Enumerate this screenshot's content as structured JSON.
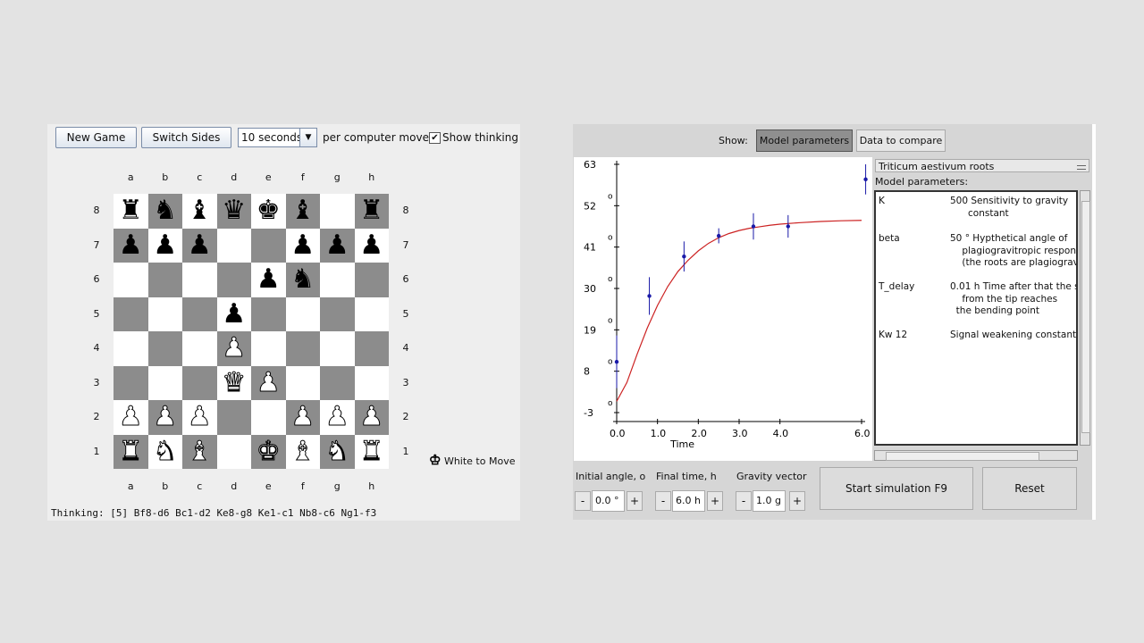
{
  "chess": {
    "new_game": "New Game",
    "switch_sides": "Switch Sides",
    "time_select": "10 seconds",
    "per_move": "per computer move",
    "show_thinking": "Show thinking",
    "show_thinking_checked": true,
    "check_mark": "✔",
    "files": [
      "a",
      "b",
      "c",
      "d",
      "e",
      "f",
      "g",
      "h"
    ],
    "ranks": [
      "8",
      "7",
      "6",
      "5",
      "4",
      "3",
      "2",
      "1"
    ],
    "board": [
      [
        "bR",
        "bN",
        "bB",
        "bQ",
        "bK",
        "bB",
        "",
        "bR"
      ],
      [
        "bP",
        "bP",
        "bP",
        "",
        "",
        "bP",
        "bP",
        "bP"
      ],
      [
        "",
        "",
        "",
        "",
        "bP",
        "bN",
        "",
        ""
      ],
      [
        "",
        "",
        "",
        "bP",
        "",
        "",
        "",
        ""
      ],
      [
        "",
        "",
        "",
        "wP",
        "",
        "",
        "",
        ""
      ],
      [
        "",
        "",
        "",
        "wQ",
        "wP",
        "",
        "",
        ""
      ],
      [
        "wP",
        "wP",
        "wP",
        "",
        "",
        "wP",
        "wP",
        "wP"
      ],
      [
        "wR",
        "wN",
        "wB",
        "",
        "wK",
        "wB",
        "wN",
        "wR"
      ]
    ],
    "status_icon": "white-king-icon",
    "status": "White to Move",
    "thinking_label": "Thinking:",
    "thinking_line": " [5] Bf8-d6 Bc1-d2 Ke8-g8 Ke1-c1 Nb8-c6 Ng1-f3"
  },
  "sim": {
    "show_label": "Show:",
    "tab_model": "Model parameters",
    "tab_data": "Data to compare",
    "species": "Triticum aestivum roots",
    "model_params_label": "Model parameters:",
    "params": [
      {
        "name": "K",
        "desc": "500 Sensitivity to gravity\n      constant"
      },
      {
        "name": "beta",
        "desc": "50 ° Hypthetical angle of\n    plagiogravitropic respons\n    (the roots are plagiogravi"
      },
      {
        "name": "T_delay",
        "desc": "0.01 h Time after that the s\n    from the tip reaches\n  the bending point"
      },
      {
        "name": "Kw 12",
        "desc": "Signal weakening constant"
      }
    ],
    "initial_angle_label": "Initial angle, o",
    "initial_angle": "0.0 °",
    "final_time_label": "Final time, h",
    "final_time": "6.0 h",
    "gravity_label": "Gravity vector",
    "gravity": "1.0 g",
    "minus": "-",
    "plus": "+",
    "start_btn": "Start simulation F9",
    "reset_btn": "Reset"
  },
  "chart_data": {
    "type": "scatter",
    "xlabel": "Time",
    "ylabel": "",
    "xlim": [
      0.0,
      6.0
    ],
    "ylim": [
      -3,
      63
    ],
    "x_ticks": [
      "0.0",
      "1.0",
      "2.0",
      "3.0",
      "4.0",
      "6.0"
    ],
    "x_tick_values": [
      0,
      1,
      2,
      3,
      4,
      6
    ],
    "y_ticks": [
      "63",
      "52",
      "41",
      "30",
      "19",
      "8",
      "-3"
    ],
    "y_tick_values": [
      63,
      52,
      41,
      30,
      19,
      8,
      -3
    ],
    "y_tick_superscript": "o",
    "series": [
      {
        "type": "scatter",
        "color": "#1a1aa8",
        "x": [
          0.0,
          0.8,
          1.65,
          2.5,
          3.35,
          4.2,
          6.1
        ],
        "y": [
          10.5,
          28.0,
          38.5,
          44.0,
          46.5,
          46.5,
          59.0
        ],
        "err": [
          7,
          5,
          4,
          2,
          3.5,
          3,
          4
        ]
      },
      {
        "type": "line",
        "color": "#cc2222",
        "x": [
          0.0,
          0.25,
          0.5,
          0.75,
          1.0,
          1.25,
          1.5,
          1.75,
          2.0,
          2.25,
          2.5,
          2.75,
          3.0,
          3.25,
          3.5,
          3.75,
          4.0,
          4.5,
          5.0,
          5.5,
          6.0
        ],
        "y": [
          0.0,
          5.0,
          12.5,
          19.5,
          25.5,
          30.5,
          34.5,
          37.5,
          40.0,
          42.0,
          43.5,
          44.6,
          45.4,
          46.0,
          46.4,
          46.8,
          47.1,
          47.5,
          47.8,
          48.0,
          48.1
        ]
      }
    ]
  }
}
